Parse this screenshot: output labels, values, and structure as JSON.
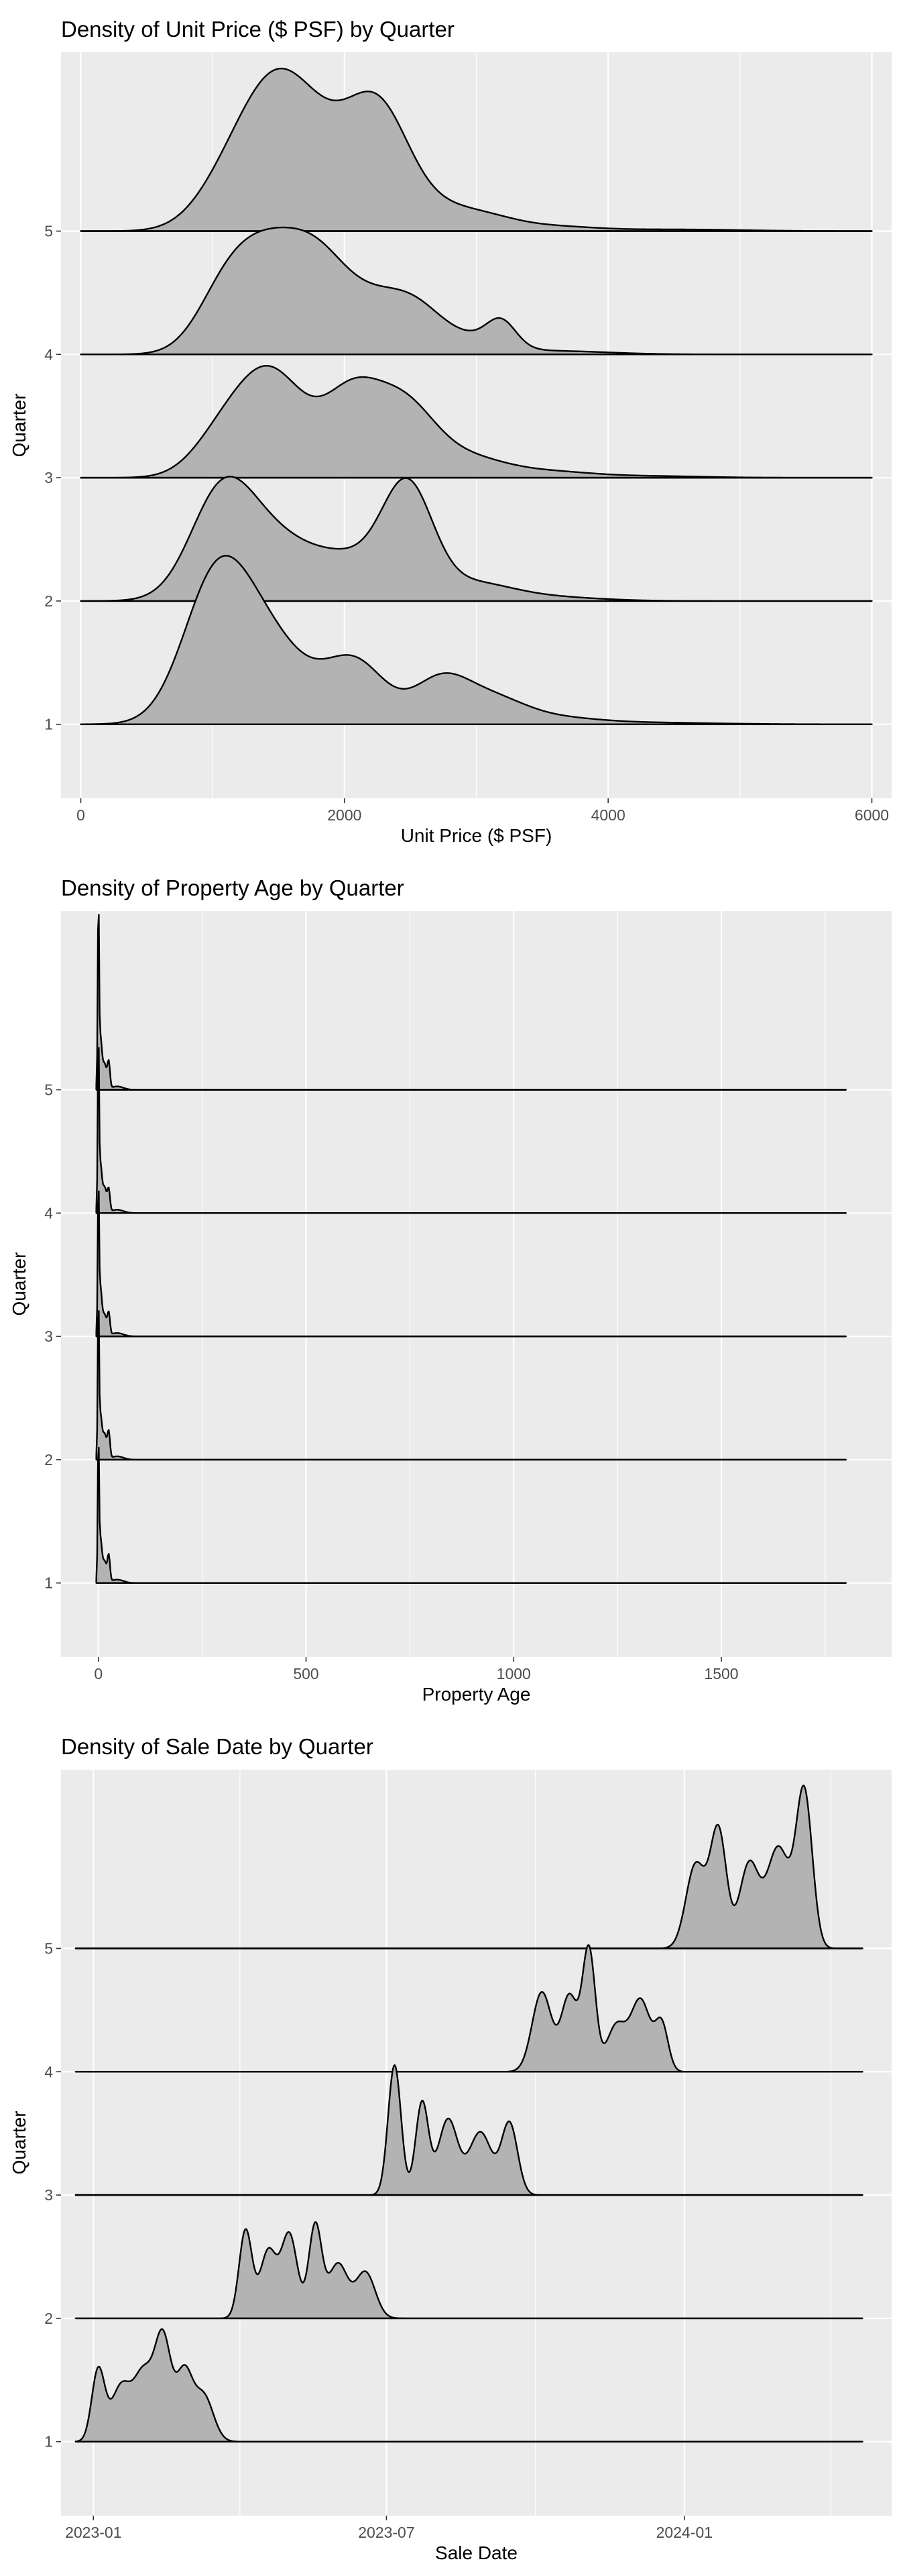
{
  "chart_data": [
    {
      "type": "ridgeline",
      "title": "Density of Unit Price ($ PSF) by Quarter",
      "xlabel": "Unit Price ($ PSF)",
      "ylabel": "Quarter",
      "xlim": [
        -150,
        6150
      ],
      "ylim": [
        0.4,
        6.45
      ],
      "xticks": [
        0,
        2000,
        4000,
        6000
      ],
      "xtick_labels": [
        "0",
        "2000",
        "4000",
        "6000"
      ],
      "yticks": [
        1,
        2,
        3,
        4,
        5
      ],
      "ytick_labels": [
        "1",
        "2",
        "3",
        "4",
        "5"
      ],
      "grid": true,
      "series": [
        {
          "quarter": 1,
          "x_range": [
            0,
            6000
          ],
          "peaks": [
            [
              1020,
              1.55,
              250
            ],
            [
              1420,
              0.95,
              300
            ],
            [
              2080,
              0.72,
              230
            ],
            [
              2720,
              0.48,
              210
            ],
            [
              3100,
              0.3,
              260
            ],
            [
              3600,
              0.07,
              320
            ],
            [
              4300,
              0.02,
              500
            ]
          ]
        },
        {
          "quarter": 2,
          "x_range": [
            0,
            6000
          ],
          "peaks": [
            [
              1050,
              0.95,
              230
            ],
            [
              1380,
              0.78,
              330
            ],
            [
              2060,
              0.45,
              300
            ],
            [
              2480,
              1.23,
              190
            ],
            [
              2950,
              0.2,
              300
            ],
            [
              3500,
              0.05,
              400
            ]
          ]
        },
        {
          "quarter": 3,
          "x_range": [
            0,
            6000
          ],
          "peaks": [
            [
              1050,
              0.38,
              220
            ],
            [
              1440,
              1.23,
              260
            ],
            [
              2050,
              0.92,
              220
            ],
            [
              2450,
              0.76,
              230
            ],
            [
              2900,
              0.25,
              320
            ],
            [
              3600,
              0.06,
              300
            ],
            [
              4300,
              0.02,
              400
            ]
          ]
        },
        {
          "quarter": 4,
          "x_range": [
            0,
            6000
          ],
          "peaks": [
            [
              1070,
              0.42,
              210
            ],
            [
              1420,
              1.25,
              290
            ],
            [
              1820,
              0.72,
              220
            ],
            [
              2200,
              0.52,
              240
            ],
            [
              2550,
              0.48,
              220
            ],
            [
              3020,
              0.16,
              220
            ],
            [
              3190,
              0.28,
              110
            ],
            [
              3600,
              0.04,
              400
            ]
          ]
        },
        {
          "quarter": 5,
          "x_range": [
            0,
            6000
          ],
          "peaks": [
            [
              1070,
              0.32,
              240
            ],
            [
              1480,
              1.68,
              290
            ],
            [
              1940,
              0.66,
              280
            ],
            [
              2270,
              1.16,
              230
            ],
            [
              2700,
              0.24,
              280
            ],
            [
              3100,
              0.12,
              250
            ],
            [
              3600,
              0.05,
              300
            ],
            [
              4500,
              0.02,
              500
            ]
          ]
        }
      ]
    },
    {
      "type": "ridgeline",
      "title": "Density of Property Age by Quarter",
      "xlabel": "Property Age",
      "ylabel": "Quarter",
      "xlim": [
        -90,
        1910
      ],
      "ylim": [
        0.4,
        6.45
      ],
      "xticks": [
        0,
        500,
        1000,
        1500
      ],
      "xtick_labels": [
        "0",
        "500",
        "1000",
        "1500"
      ],
      "yticks": [
        1,
        2,
        3,
        4,
        5
      ],
      "ytick_labels": [
        "1",
        "2",
        "3",
        "4",
        "5"
      ],
      "grid": true,
      "series": [
        {
          "quarter": 1,
          "x_range": [
            -5,
            1800
          ],
          "peaks": [
            [
              0,
              1.5,
              1.5
            ],
            [
              4,
              0.55,
              4
            ],
            [
              15,
              0.25,
              5
            ],
            [
              25,
              0.3,
              3
            ],
            [
              45,
              0.04,
              15
            ]
          ]
        },
        {
          "quarter": 2,
          "x_range": [
            -5,
            1800
          ],
          "peaks": [
            [
              0,
              1.7,
              1.5
            ],
            [
              4,
              0.55,
              4
            ],
            [
              15,
              0.3,
              5
            ],
            [
              25,
              0.3,
              3
            ],
            [
              45,
              0.04,
              15
            ]
          ]
        },
        {
          "quarter": 3,
          "x_range": [
            -5,
            1800
          ],
          "peaks": [
            [
              0,
              1.6,
              1.5
            ],
            [
              4,
              0.6,
              4
            ],
            [
              15,
              0.25,
              5
            ],
            [
              25,
              0.25,
              3
            ],
            [
              45,
              0.04,
              15
            ]
          ]
        },
        {
          "quarter": 4,
          "x_range": [
            -5,
            1800
          ],
          "peaks": [
            [
              0,
              1.9,
              1.5
            ],
            [
              4,
              0.6,
              4
            ],
            [
              15,
              0.3,
              5
            ],
            [
              25,
              0.25,
              3
            ],
            [
              45,
              0.04,
              15
            ]
          ]
        },
        {
          "quarter": 5,
          "x_range": [
            -5,
            1800
          ],
          "peaks": [
            [
              0,
              2.0,
              1.5
            ],
            [
              4,
              0.65,
              4
            ],
            [
              15,
              0.3,
              5
            ],
            [
              25,
              0.3,
              3
            ],
            [
              45,
              0.04,
              15
            ]
          ]
        }
      ]
    },
    {
      "type": "ridgeline",
      "title": "Density of Sale Date by Quarter",
      "xlabel": "Sale Date",
      "ylabel": "Quarter",
      "xlim": [
        "2022-12-12",
        "2024-05-08"
      ],
      "ylim": [
        0.4,
        6.45
      ],
      "xticks": [
        "2023-01-01",
        "2023-07-01",
        "2024-01-01"
      ],
      "xtick_labels": [
        "2023-01",
        "2023-07",
        "2024-01"
      ],
      "yticks": [
        1,
        2,
        3,
        4,
        5
      ],
      "ytick_labels": [
        "1",
        "2",
        "3",
        "4",
        "5"
      ],
      "grid": true,
      "series": [
        {
          "quarter": 1,
          "x_range": [
            "2022-12-21",
            "2024-04-20"
          ],
          "peaks": [
            [
              "2023-01-04",
              0.85,
              4
            ],
            [
              "2023-01-18",
              0.65,
              6
            ],
            [
              "2023-02-01",
              0.8,
              6
            ],
            [
              "2023-02-13",
              1.2,
              5
            ],
            [
              "2023-02-26",
              0.8,
              5
            ],
            [
              "2023-03-10",
              0.55,
              6
            ]
          ]
        },
        {
          "quarter": 2,
          "x_range": [
            "2022-12-21",
            "2024-04-20"
          ],
          "peaks": [
            [
              "2023-04-05",
              1.05,
              4
            ],
            [
              "2023-04-19",
              0.8,
              5
            ],
            [
              "2023-05-02",
              1.0,
              5
            ],
            [
              "2023-05-18",
              1.1,
              4
            ],
            [
              "2023-06-01",
              0.65,
              6
            ],
            [
              "2023-06-18",
              0.55,
              6
            ]
          ]
        },
        {
          "quarter": 3,
          "x_range": [
            "2022-12-21",
            "2024-04-20"
          ],
          "peaks": [
            [
              "2023-07-06",
              1.55,
              4
            ],
            [
              "2023-07-23",
              1.1,
              4
            ],
            [
              "2023-08-08",
              0.9,
              6
            ],
            [
              "2023-08-28",
              0.75,
              7
            ],
            [
              "2023-09-15",
              0.85,
              5
            ]
          ]
        },
        {
          "quarter": 4,
          "x_range": [
            "2022-12-21",
            "2024-04-20"
          ],
          "peaks": [
            [
              "2023-10-05",
              0.95,
              6
            ],
            [
              "2023-10-22",
              0.9,
              5
            ],
            [
              "2023-11-03",
              1.45,
              4
            ],
            [
              "2023-11-20",
              0.55,
              6
            ],
            [
              "2023-12-05",
              0.85,
              6
            ],
            [
              "2023-12-18",
              0.55,
              4
            ]
          ]
        },
        {
          "quarter": 5,
          "x_range": [
            "2022-12-21",
            "2024-04-20"
          ],
          "peaks": [
            [
              "2024-01-08",
              1.0,
              6
            ],
            [
              "2024-01-22",
              1.4,
              5
            ],
            [
              "2024-02-10",
              1.0,
              6
            ],
            [
              "2024-02-28",
              1.2,
              7
            ],
            [
              "2024-03-15",
              1.85,
              5
            ]
          ]
        }
      ]
    }
  ]
}
